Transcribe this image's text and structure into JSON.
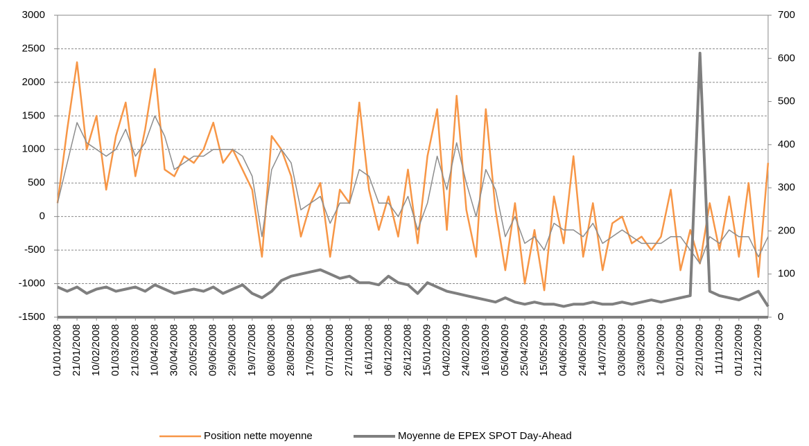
{
  "chart_data": {
    "type": "line",
    "x": [
      "01/01/2008",
      "11/01/2008",
      "21/01/2008",
      "31/01/2008",
      "10/02/2008",
      "20/02/2008",
      "01/03/2008",
      "11/03/2008",
      "21/03/2008",
      "31/03/2008",
      "10/04/2008",
      "20/04/2008",
      "30/04/2008",
      "10/05/2008",
      "20/05/2008",
      "30/05/2008",
      "09/06/2008",
      "19/06/2008",
      "29/06/2008",
      "09/07/2008",
      "19/07/2008",
      "29/07/2008",
      "08/08/2008",
      "18/08/2008",
      "28/08/2008",
      "07/09/2008",
      "17/09/2008",
      "27/09/2008",
      "07/10/2008",
      "17/10/2008",
      "27/10/2008",
      "06/11/2008",
      "16/11/2008",
      "26/11/2008",
      "06/12/2008",
      "16/12/2008",
      "26/12/2008",
      "05/01/2009",
      "15/01/2009",
      "25/01/2009",
      "04/02/2009",
      "14/02/2009",
      "24/02/2009",
      "06/03/2009",
      "16/03/2009",
      "26/03/2009",
      "05/04/2009",
      "15/04/2009",
      "25/04/2009",
      "05/05/2009",
      "15/05/2009",
      "25/05/2009",
      "04/06/2009",
      "14/06/2009",
      "24/06/2009",
      "04/07/2009",
      "14/07/2009",
      "24/07/2009",
      "03/08/2009",
      "13/08/2009",
      "23/08/2009",
      "02/09/2009",
      "12/09/2009",
      "22/09/2009",
      "02/10/2009",
      "12/10/2009",
      "22/10/2009",
      "01/11/2009",
      "11/11/2009",
      "21/11/2009",
      "01/12/2009",
      "11/12/2009",
      "21/12/2009",
      "31/12/2009"
    ],
    "series": [
      {
        "name": "Position nette moyenne",
        "color": "#f79646",
        "width": 2.5,
        "values": [
          200,
          1300,
          2300,
          1000,
          1500,
          400,
          1200,
          1700,
          600,
          1300,
          2200,
          700,
          600,
          900,
          800,
          1000,
          1400,
          800,
          1000,
          700,
          400,
          -600,
          1200,
          1000,
          600,
          -300,
          200,
          500,
          -600,
          400,
          200,
          1700,
          400,
          -200,
          300,
          -300,
          700,
          -400,
          900,
          1600,
          -200,
          1800,
          100,
          -600,
          1600,
          100,
          -800,
          200,
          -1000,
          -200,
          -1100,
          300,
          -400,
          900,
          -600,
          200,
          -800,
          -100,
          0,
          -400,
          -300,
          -500,
          -300,
          400,
          -800,
          -200,
          -700,
          200,
          -500,
          300,
          -600,
          500,
          -900,
          800
        ]
      },
      {
        "color": "#8c8c8c",
        "width": 1.5,
        "values": [
          200,
          800,
          1400,
          1100,
          1000,
          900,
          1000,
          1300,
          900,
          1100,
          1500,
          1200,
          700,
          800,
          900,
          900,
          1000,
          1000,
          1000,
          900,
          600,
          -300,
          700,
          1000,
          800,
          100,
          200,
          300,
          -100,
          200,
          200,
          700,
          600,
          200,
          200,
          0,
          300,
          -200,
          200,
          900,
          400,
          1100,
          500,
          0,
          700,
          400,
          -300,
          0,
          -400,
          -300,
          -500,
          -100,
          -200,
          -200,
          -300,
          -100,
          -400,
          -300,
          -200,
          -300,
          -400,
          -400,
          -400,
          -300,
          -300,
          -500,
          -700,
          -300,
          -400,
          -200,
          -300,
          -300,
          -600,
          -300
        ]
      },
      {
        "name": "Moyenne de EPEX SPOT Day-Ahead",
        "color": "#7f7f7f",
        "width": 4,
        "axis": "y2",
        "values": [
          70,
          60,
          70,
          55,
          65,
          70,
          60,
          65,
          70,
          60,
          75,
          65,
          55,
          60,
          65,
          60,
          70,
          55,
          65,
          75,
          55,
          45,
          60,
          85,
          95,
          100,
          105,
          110,
          100,
          90,
          95,
          80,
          80,
          75,
          95,
          80,
          75,
          55,
          80,
          70,
          60,
          55,
          50,
          45,
          40,
          35,
          45,
          35,
          30,
          35,
          30,
          30,
          25,
          30,
          30,
          35,
          30,
          30,
          35,
          30,
          35,
          40,
          35,
          40,
          45,
          50,
          612,
          60,
          50,
          45,
          40,
          50,
          60,
          25
        ]
      }
    ],
    "xlim": [
      "01/01/2008",
      "31/12/2009"
    ],
    "xticks": [
      "01/01/2008",
      "21/01/2008",
      "10/02/2008",
      "01/03/2008",
      "21/03/2008",
      "10/04/2008",
      "30/04/2008",
      "20/05/2008",
      "09/06/2008",
      "29/06/2008",
      "19/07/2008",
      "08/08/2008",
      "28/08/2008",
      "17/09/2008",
      "07/10/2008",
      "27/10/2008",
      "16/11/2008",
      "06/12/2008",
      "26/12/2008",
      "15/01/2009",
      "04/02/2009",
      "24/02/2009",
      "16/03/2009",
      "05/04/2009",
      "25/04/2009",
      "15/05/2009",
      "04/06/2009",
      "24/06/2009",
      "14/07/2009",
      "03/08/2009",
      "23/08/2009",
      "12/09/2009",
      "02/10/2009",
      "22/10/2009",
      "11/11/2009",
      "01/12/2009",
      "21/12/2009"
    ],
    "ylim": [
      -1500,
      3000
    ],
    "yticks": [
      -1500,
      -1000,
      -500,
      0,
      500,
      1000,
      1500,
      2000,
      2500,
      3000
    ],
    "y2lim": [
      0,
      700
    ],
    "y2ticks": [
      0,
      100,
      200,
      300,
      400,
      500,
      600,
      700
    ],
    "grid": true
  }
}
